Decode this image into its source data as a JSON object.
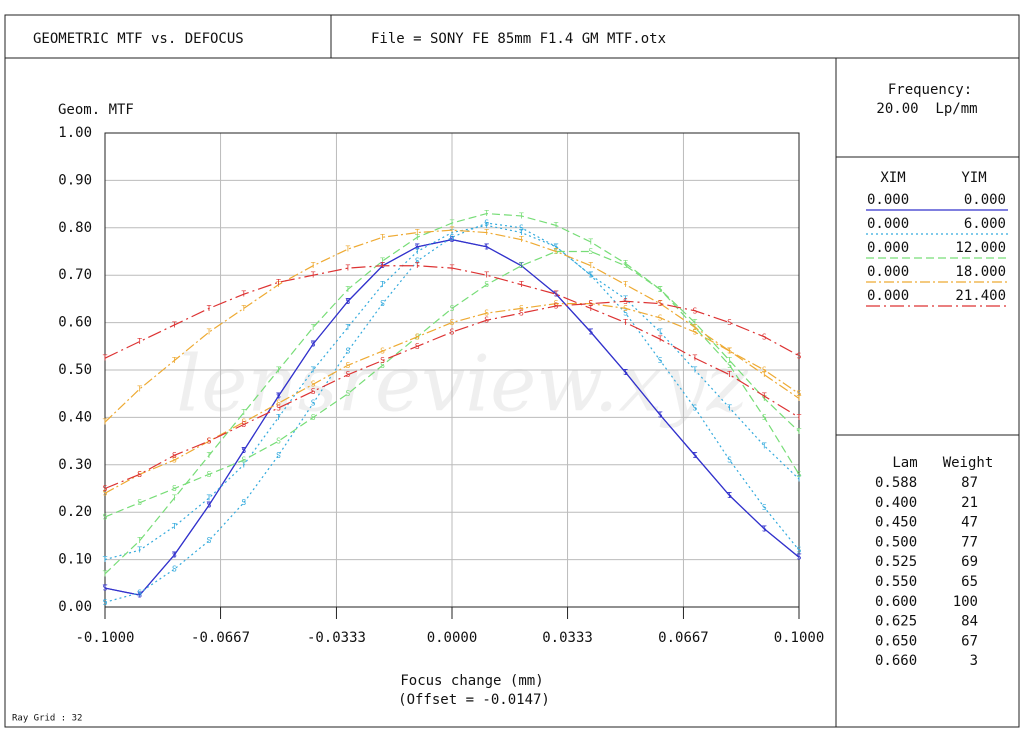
{
  "header": {
    "title": "GEOMETRIC MTF vs. DEFOCUS",
    "file": "File = SONY FE 85mm F1.4 GM MTF.otx"
  },
  "watermark": "lensreview.xyz",
  "frequency": {
    "label": "Frequency:",
    "value": "20.00  Lp/mm"
  },
  "wavelengths": {
    "headers": [
      "Lam",
      "Weight"
    ],
    "rows": [
      [
        "0.588",
        "87"
      ],
      [
        "0.400",
        "21"
      ],
      [
        "0.450",
        "47"
      ],
      [
        "0.500",
        "77"
      ],
      [
        "0.525",
        "69"
      ],
      [
        "0.550",
        "65"
      ],
      [
        "0.600",
        "100"
      ],
      [
        "0.625",
        "84"
      ],
      [
        "0.650",
        "67"
      ],
      [
        "0.660",
        "3"
      ]
    ]
  },
  "ray_grid": "Ray Grid : 32",
  "chart_data": {
    "type": "line",
    "y_label": "Geom. MTF",
    "x_label": "Focus change (mm)",
    "x_note": "(Offset = -0.0147)",
    "legend_headers": [
      "XIM",
      "YIM"
    ],
    "tangential_marker": "T",
    "sagittal_marker": "S",
    "grid": true,
    "x": [
      -0.1,
      -0.09,
      -0.08,
      -0.07,
      -0.06,
      -0.05,
      -0.04,
      -0.03,
      -0.02,
      -0.01,
      0,
      0.01,
      0.02,
      0.03,
      0.04,
      0.05,
      0.06,
      0.07,
      0.08,
      0.09,
      0.1
    ],
    "xlim": [
      -0.1,
      0.1
    ],
    "xticks": [
      {
        "value": -0.1,
        "label": "-0.1000"
      },
      {
        "value": -0.0667,
        "label": "-0.0667"
      },
      {
        "value": -0.0333,
        "label": "-0.0333"
      },
      {
        "value": 0,
        "label": "0.0000"
      },
      {
        "value": 0.0333,
        "label": "0.0333"
      },
      {
        "value": 0.0667,
        "label": "0.0667"
      },
      {
        "value": 0.1,
        "label": "0.1000"
      }
    ],
    "ylim": [
      0,
      1
    ],
    "yticks": [
      {
        "value": 0,
        "label": "0.00"
      },
      {
        "value": 0.1,
        "label": "0.10"
      },
      {
        "value": 0.2,
        "label": "0.20"
      },
      {
        "value": 0.3,
        "label": "0.30"
      },
      {
        "value": 0.4,
        "label": "0.40"
      },
      {
        "value": 0.5,
        "label": "0.50"
      },
      {
        "value": 0.6,
        "label": "0.60"
      },
      {
        "value": 0.7,
        "label": "0.70"
      },
      {
        "value": 0.8,
        "label": "0.80"
      },
      {
        "value": 0.9,
        "label": "0.90"
      },
      {
        "value": 1,
        "label": "1.00"
      }
    ],
    "fields": [
      {
        "xim": "0.000",
        "yim": "0.000",
        "color": "#3333cc",
        "dash": "none",
        "tangential": [
          0.04,
          0.025,
          0.11,
          0.215,
          0.33,
          0.445,
          0.555,
          0.645,
          0.72,
          0.76,
          0.775,
          0.76,
          0.72,
          0.66,
          0.58,
          0.495,
          0.405,
          0.32,
          0.235,
          0.165,
          0.105
        ],
        "sagittal": [
          0.04,
          0.025,
          0.11,
          0.215,
          0.33,
          0.445,
          0.555,
          0.645,
          0.72,
          0.76,
          0.775,
          0.76,
          0.72,
          0.66,
          0.58,
          0.495,
          0.405,
          0.32,
          0.235,
          0.165,
          0.105
        ]
      },
      {
        "xim": "0.000",
        "yim": "6.000",
        "color": "#33aadd",
        "dash": "2,3",
        "tangential": [
          0.1,
          0.12,
          0.17,
          0.23,
          0.3,
          0.4,
          0.5,
          0.59,
          0.68,
          0.75,
          0.79,
          0.805,
          0.79,
          0.76,
          0.7,
          0.65,
          0.58,
          0.5,
          0.42,
          0.34,
          0.27
        ],
        "sagittal": [
          0.01,
          0.03,
          0.08,
          0.14,
          0.22,
          0.32,
          0.43,
          0.54,
          0.64,
          0.73,
          0.78,
          0.81,
          0.8,
          0.76,
          0.7,
          0.62,
          0.52,
          0.42,
          0.31,
          0.21,
          0.12
        ]
      },
      {
        "xim": "0.000",
        "yim": "12.000",
        "color": "#77dd77",
        "dash": "8,4",
        "tangential": [
          0.07,
          0.14,
          0.23,
          0.32,
          0.41,
          0.5,
          0.59,
          0.67,
          0.73,
          0.78,
          0.81,
          0.83,
          0.825,
          0.805,
          0.77,
          0.725,
          0.67,
          0.6,
          0.52,
          0.44,
          0.37
        ],
        "sagittal": [
          0.19,
          0.22,
          0.25,
          0.28,
          0.31,
          0.35,
          0.4,
          0.45,
          0.51,
          0.57,
          0.63,
          0.68,
          0.72,
          0.75,
          0.75,
          0.72,
          0.67,
          0.59,
          0.51,
          0.4,
          0.28
        ]
      },
      {
        "xim": "0.000",
        "yim": "18.000",
        "color": "#eeaa33",
        "dash": "10,3,2,3",
        "tangential": [
          0.39,
          0.46,
          0.52,
          0.58,
          0.63,
          0.68,
          0.72,
          0.755,
          0.78,
          0.79,
          0.795,
          0.79,
          0.775,
          0.75,
          0.72,
          0.68,
          0.64,
          0.59,
          0.54,
          0.49,
          0.44
        ],
        "sagittal": [
          0.24,
          0.28,
          0.31,
          0.35,
          0.39,
          0.43,
          0.47,
          0.51,
          0.54,
          0.57,
          0.6,
          0.62,
          0.63,
          0.64,
          0.64,
          0.63,
          0.61,
          0.58,
          0.54,
          0.5,
          0.45
        ]
      },
      {
        "xim": "0.000",
        "yim": "21.400",
        "color": "#dd3333",
        "dash": "14,4,2,4",
        "tangential": [
          0.525,
          0.56,
          0.595,
          0.63,
          0.66,
          0.685,
          0.7,
          0.715,
          0.72,
          0.72,
          0.715,
          0.7,
          0.68,
          0.66,
          0.63,
          0.6,
          0.565,
          0.525,
          0.49,
          0.445,
          0.4
        ],
        "sagittal": [
          0.25,
          0.28,
          0.32,
          0.35,
          0.385,
          0.42,
          0.455,
          0.49,
          0.52,
          0.55,
          0.58,
          0.605,
          0.62,
          0.635,
          0.64,
          0.645,
          0.64,
          0.625,
          0.6,
          0.57,
          0.53
        ]
      }
    ]
  }
}
